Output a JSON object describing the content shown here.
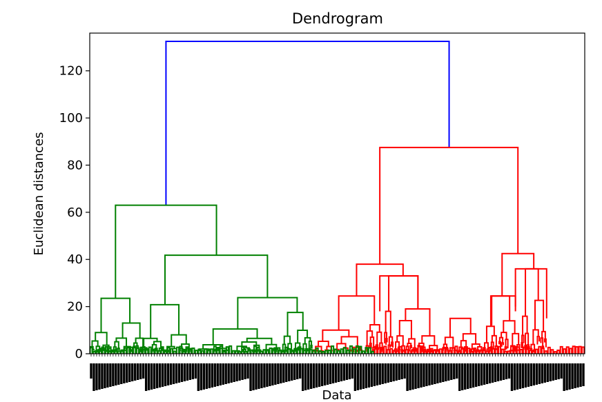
{
  "chart_data": {
    "type": "dendrogram",
    "title": "Dendrogram",
    "xlabel": "Data",
    "ylabel": "Euclidean distances",
    "ylim": [
      0,
      136
    ],
    "yticks": [
      0,
      20,
      40,
      60,
      80,
      100,
      120
    ],
    "grid": false,
    "legend": "none",
    "colors": {
      "cluster_1": "#008000",
      "cluster_2": "#ff0000",
      "above_threshold": "#0000ff"
    },
    "merges": [
      {
        "left": 15.4,
        "right": 72.6,
        "height": 132.5,
        "color": "#0000ff",
        "left_h": 63,
        "right_h": 87.5
      },
      {
        "left": 5.2,
        "right": 25.6,
        "height": 63,
        "color": "#008000",
        "left_h": 23.5,
        "right_h": 41.8
      },
      {
        "left": 15.2,
        "right": 35.9,
        "height": 41.8,
        "color": "#008000",
        "left_h": 20.8,
        "right_h": 23.8
      },
      {
        "left": 2.3,
        "right": 8.1,
        "height": 23.5,
        "color": "#008000",
        "left_h": 9,
        "right_h": 13
      },
      {
        "left": 12.3,
        "right": 18.0,
        "height": 20.8,
        "color": "#008000",
        "left_h": 6.5,
        "right_h": 8
      },
      {
        "left": 29.9,
        "right": 41.9,
        "height": 23.8,
        "color": "#008000",
        "left_h": 10.5,
        "right_h": 17.5
      },
      {
        "left": 58.6,
        "right": 86.5,
        "height": 87.5,
        "color": "#ff0000",
        "left_h": 38,
        "right_h": 42.5
      },
      {
        "left": 53.9,
        "right": 63.3,
        "height": 38,
        "color": "#ff0000",
        "left_h": 24.5,
        "right_h": 33
      },
      {
        "left": 50.3,
        "right": 57.5,
        "height": 24.5,
        "color": "#ff0000",
        "left_h": 10,
        "right_h": 12.3
      },
      {
        "left": 60.4,
        "right": 66.3,
        "height": 33,
        "color": "#ff0000",
        "left_h": 18,
        "right_h": 19
      },
      {
        "left": 83.3,
        "right": 89.7,
        "height": 42.5,
        "color": "#ff0000",
        "left_h": 24.5,
        "right_h": 36
      }
    ]
  }
}
